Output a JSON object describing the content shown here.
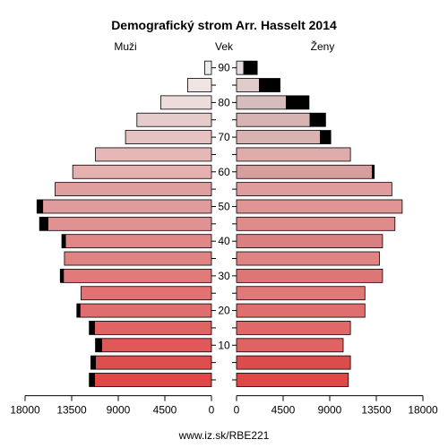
{
  "chart_data": {
    "type": "bar",
    "orientation": "horizontal",
    "title": "Demografický strom Arr. Hasselt 2014",
    "left_label": "Muži",
    "center_label": "Vek",
    "right_label": "Ženy",
    "source": "www.iz.sk/RBE221",
    "xlim": [
      0,
      18000
    ],
    "x_ticks": [
      18000,
      13500,
      9000,
      4500,
      0
    ],
    "y_ticks": [
      10,
      20,
      30,
      40,
      50,
      60,
      70,
      80,
      90
    ],
    "age_groups": [
      "0-4",
      "5-9",
      "10-14",
      "15-19",
      "20-24",
      "25-29",
      "30-34",
      "35-39",
      "40-44",
      "45-49",
      "50-54",
      "55-59",
      "60-64",
      "65-69",
      "70-74",
      "75-79",
      "80-84",
      "85-89",
      "90+"
    ],
    "series": [
      {
        "name": "Muži",
        "values": [
          11300,
          11200,
          10600,
          11300,
          12700,
          12600,
          14300,
          14200,
          14100,
          15800,
          16300,
          15100,
          13400,
          11200,
          8300,
          7200,
          4900,
          2300,
          650
        ]
      },
      {
        "name": "Muži (nadbytok)",
        "values": [
          500,
          450,
          600,
          500,
          300,
          0,
          300,
          0,
          350,
          800,
          550,
          0,
          0,
          0,
          0,
          0,
          0,
          0,
          0
        ]
      },
      {
        "name": "Ženy",
        "values": [
          10800,
          11000,
          10300,
          11000,
          12400,
          12400,
          14100,
          13800,
          14100,
          15300,
          16000,
          15000,
          13100,
          11000,
          8100,
          7100,
          4800,
          2200,
          700
        ]
      },
      {
        "name": "Ženy (nadbytok)",
        "values": [
          0,
          0,
          0,
          0,
          0,
          0,
          0,
          0,
          0,
          0,
          0,
          0,
          200,
          0,
          1000,
          1500,
          2200,
          2000,
          1300
        ]
      }
    ],
    "colors": {
      "female_gradient": [
        "#e04848",
        "#dc4c4c",
        "#e06262",
        "#e06868",
        "#e06e6e",
        "#e07878",
        "#dd7676",
        "#e08383",
        "#d98080",
        "#e08a8a",
        "#e09494",
        "#e09c9c",
        "#d89e9e",
        "#dfabab",
        "#dab2b2",
        "#d8b3b3",
        "#d6bcbc",
        "#e1cccc",
        "#e6dcdc"
      ],
      "male_gradient": [
        "#e04848",
        "#de4e4e",
        "#e05858",
        "#e06464",
        "#e06e6e",
        "#e07272",
        "#e07b7b",
        "#e08383",
        "#e08888",
        "#e09191",
        "#e09c9c",
        "#e09f9f",
        "#e6b0b0",
        "#e6b7b7",
        "#e6c2c2",
        "#e6cbcb",
        "#eddcdc",
        "#efe3e3",
        "#f0ebeb"
      ],
      "excess": "#000000"
    }
  }
}
